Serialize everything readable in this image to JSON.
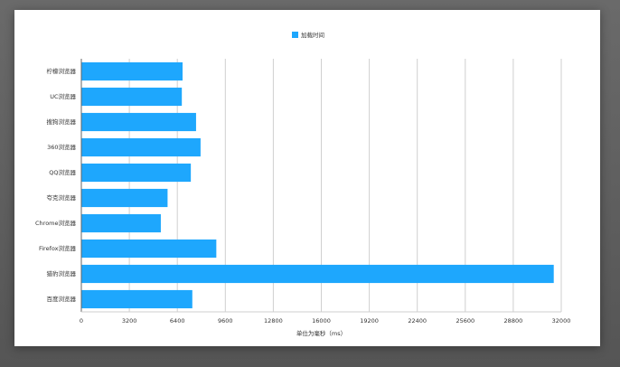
{
  "chart_data": {
    "type": "bar",
    "orientation": "horizontal",
    "title": "",
    "categories": [
      "柠檬浏览器",
      "UC浏览器",
      "搜狗浏览器",
      "360浏览器",
      "QQ浏览器",
      "夸克浏览器",
      "Chrome浏览器",
      "Firefox浏览器",
      "猎豹浏览器",
      "百度浏览器"
    ],
    "series": [
      {
        "name": "加载时间",
        "color": "#1ea7fd",
        "values": [
          6750,
          6700,
          7650,
          7950,
          7300,
          5750,
          5300,
          9000,
          31500,
          7400
        ]
      }
    ],
    "xlabel": "单位为毫秒（ms）",
    "ylabel": "",
    "xlim": [
      0,
      32000
    ],
    "xticks": [
      0,
      3200,
      6400,
      9600,
      12800,
      16000,
      19200,
      22400,
      25600,
      28800,
      32000
    ],
    "grid": true,
    "legend_position": "top-center"
  }
}
